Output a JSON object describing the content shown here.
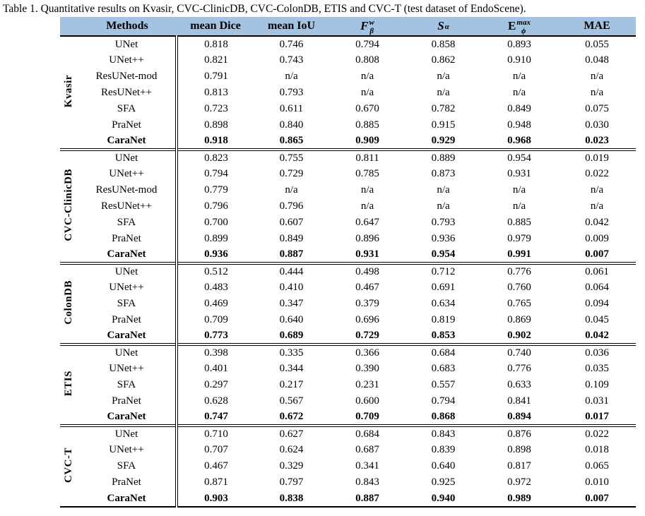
{
  "caption": "Table 1. Quantitative results on Kvasir, CVC-ClinicDB, CVC-ColonDB, ETIS and CVC-T (test dataset of EndoScene).",
  "colors": {
    "header_bg": "#a4c2e1",
    "border": "#000000"
  },
  "chart_data": {
    "type": "table"
  },
  "table": {
    "header": [
      {
        "label": ""
      },
      {
        "label": "Methods"
      },
      {
        "label": "mean Dice"
      },
      {
        "label": "mean IoU"
      },
      {
        "base": "F",
        "sup": "w",
        "sub": "β",
        "italic": true
      },
      {
        "base": "S",
        "sup": "",
        "sub": "α",
        "italic": true
      },
      {
        "base": "E",
        "sup": "max",
        "sub": "ϕ",
        "italic": false
      },
      {
        "label": "MAE"
      }
    ],
    "sections": [
      {
        "dataset": "Kvasir",
        "rows": [
          {
            "method": "UNet",
            "values": [
              "0.818",
              "0.746",
              "0.794",
              "0.858",
              "0.893",
              "0.055"
            ],
            "bold": false
          },
          {
            "method": "UNet++",
            "values": [
              "0.821",
              "0.743",
              "0.808",
              "0.862",
              "0.910",
              "0.048"
            ],
            "bold": false
          },
          {
            "method": "ResUNet-mod",
            "values": [
              "0.791",
              "n/a",
              "n/a",
              "n/a",
              "n/a",
              "n/a"
            ],
            "bold": false
          },
          {
            "method": "ResUNet++",
            "values": [
              "0.813",
              "0.793",
              "n/a",
              "n/a",
              "n/a",
              "n/a"
            ],
            "bold": false
          },
          {
            "method": "SFA",
            "values": [
              "0.723",
              "0.611",
              "0.670",
              "0.782",
              "0.849",
              "0.075"
            ],
            "bold": false
          },
          {
            "method": "PraNet",
            "values": [
              "0.898",
              "0.840",
              "0.885",
              "0.915",
              "0.948",
              "0.030"
            ],
            "bold": false
          },
          {
            "method": "CaraNet",
            "values": [
              "0.918",
              "0.865",
              "0.909",
              "0.929",
              "0.968",
              "0.023"
            ],
            "bold": true
          }
        ]
      },
      {
        "dataset": "CVC-ClinicDB",
        "rows": [
          {
            "method": "UNet",
            "values": [
              "0.823",
              "0.755",
              "0.811",
              "0.889",
              "0.954",
              "0.019"
            ],
            "bold": false
          },
          {
            "method": "UNet++",
            "values": [
              "0.794",
              "0.729",
              "0.785",
              "0.873",
              "0.931",
              "0.022"
            ],
            "bold": false
          },
          {
            "method": "ResUNet-mod",
            "values": [
              "0.779",
              "n/a",
              "n/a",
              "n/a",
              "n/a",
              "n/a"
            ],
            "bold": false
          },
          {
            "method": "ResUNet++",
            "values": [
              "0.796",
              "0.796",
              "n/a",
              "n/a",
              "n/a",
              "n/a"
            ],
            "bold": false
          },
          {
            "method": "SFA",
            "values": [
              "0.700",
              "0.607",
              "0.647",
              "0.793",
              "0.885",
              "0.042"
            ],
            "bold": false
          },
          {
            "method": "PraNet",
            "values": [
              "0.899",
              "0.849",
              "0.896",
              "0.936",
              "0.979",
              "0.009"
            ],
            "bold": false
          },
          {
            "method": "CaraNet",
            "values": [
              "0.936",
              "0.887",
              "0.931",
              "0.954",
              "0.991",
              "0.007"
            ],
            "bold": true
          }
        ]
      },
      {
        "dataset": "ColonDB",
        "rows": [
          {
            "method": "UNet",
            "values": [
              "0.512",
              "0.444",
              "0.498",
              "0.712",
              "0.776",
              "0.061"
            ],
            "bold": false
          },
          {
            "method": "UNet++",
            "values": [
              "0.483",
              "0.410",
              "0.467",
              "0.691",
              "0.760",
              "0.064"
            ],
            "bold": false
          },
          {
            "method": "SFA",
            "values": [
              "0.469",
              "0.347",
              "0.379",
              "0.634",
              "0.765",
              "0.094"
            ],
            "bold": false
          },
          {
            "method": "PraNet",
            "values": [
              "0.709",
              "0.640",
              "0.696",
              "0.819",
              "0.869",
              "0.045"
            ],
            "bold": false
          },
          {
            "method": "CaraNet",
            "values": [
              "0.773",
              "0.689",
              "0.729",
              "0.853",
              "0.902",
              "0.042"
            ],
            "bold": true
          }
        ]
      },
      {
        "dataset": "ETIS",
        "rows": [
          {
            "method": "UNet",
            "values": [
              "0.398",
              "0.335",
              "0.366",
              "0.684",
              "0.740",
              "0.036"
            ],
            "bold": false
          },
          {
            "method": "UNet++",
            "values": [
              "0.401",
              "0.344",
              "0.390",
              "0.683",
              "0.776",
              "0.035"
            ],
            "bold": false
          },
          {
            "method": "SFA",
            "values": [
              "0.297",
              "0.217",
              "0.231",
              "0.557",
              "0.633",
              "0.109"
            ],
            "bold": false
          },
          {
            "method": "PraNet",
            "values": [
              "0.628",
              "0.567",
              "0.600",
              "0.794",
              "0.841",
              "0.031"
            ],
            "bold": false
          },
          {
            "method": "CaraNet",
            "values": [
              "0.747",
              "0.672",
              "0.709",
              "0.868",
              "0.894",
              "0.017"
            ],
            "bold": true
          }
        ]
      },
      {
        "dataset": "CVC-T",
        "rows": [
          {
            "method": "UNet",
            "values": [
              "0.710",
              "0.627",
              "0.684",
              "0.843",
              "0.876",
              "0.022"
            ],
            "bold": false
          },
          {
            "method": "UNet++",
            "values": [
              "0.707",
              "0.624",
              "0.687",
              "0.839",
              "0.898",
              "0.018"
            ],
            "bold": false
          },
          {
            "method": "SFA",
            "values": [
              "0.467",
              "0.329",
              "0.341",
              "0.640",
              "0.817",
              "0.065"
            ],
            "bold": false
          },
          {
            "method": "PraNet",
            "values": [
              "0.871",
              "0.797",
              "0.843",
              "0.925",
              "0.972",
              "0.010"
            ],
            "bold": false
          },
          {
            "method": "CaraNet",
            "values": [
              "0.903",
              "0.838",
              "0.887",
              "0.940",
              "0.989",
              "0.007"
            ],
            "bold": true
          }
        ]
      }
    ]
  }
}
